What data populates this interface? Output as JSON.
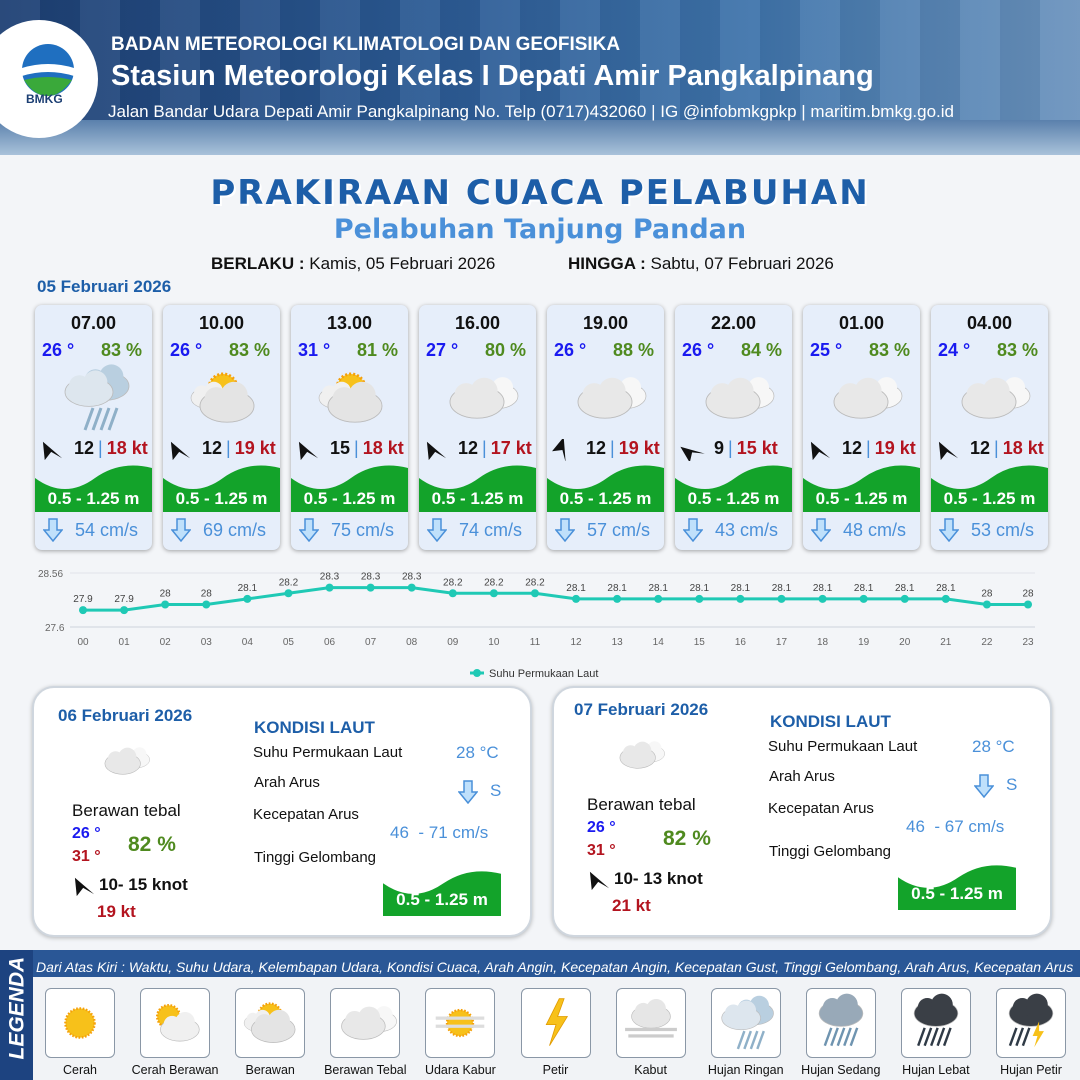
{
  "header": {
    "agency": "BADAN METEOROLOGI KLIMATOLOGI DAN GEOFISIKA",
    "station": "Stasiun Meteorologi Kelas I Depati Amir Pangkalpinang",
    "address": "Jalan Bandar Udara Depati Amir Pangkalpinang No. Telp (0717)432060 | IG @infobmkgpkp | maritim.bmkg.go.id",
    "logo_text": "BMKG"
  },
  "title": "PRAKIRAAN CUACA PELABUHAN",
  "subtitle": "Pelabuhan Tanjung Pandan",
  "validity": {
    "from_label": "BERLAKU :",
    "from": "Kamis, 05 Februari 2026",
    "to_label": "HINGGA :",
    "to": "Sabtu, 07 Februari 2026"
  },
  "day1": {
    "date": "05 Februari 2026",
    "forecasts": [
      {
        "time": "07.00",
        "temp": "26 °",
        "hum": "83 %",
        "icon": "hujan-ringan",
        "wind_dir_deg": 225,
        "wind": "12",
        "gust": "18 kt",
        "wave": "0.5 - 1.25 m",
        "current": "54 cm/s"
      },
      {
        "time": "10.00",
        "temp": "26 °",
        "hum": "83 %",
        "icon": "berawan",
        "wind_dir_deg": 225,
        "wind": "12",
        "gust": "19 kt",
        "wave": "0.5 - 1.25 m",
        "current": "69 cm/s"
      },
      {
        "time": "13.00",
        "temp": "31 °",
        "hum": "81 %",
        "icon": "berawan",
        "wind_dir_deg": 225,
        "wind": "15",
        "gust": "18 kt",
        "wave": "0.5 - 1.25 m",
        "current": "75 cm/s"
      },
      {
        "time": "16.00",
        "temp": "27 °",
        "hum": "80 %",
        "icon": "berawan-tebal",
        "wind_dir_deg": 225,
        "wind": "12",
        "gust": "17 kt",
        "wave": "0.5 - 1.25 m",
        "current": "74 cm/s"
      },
      {
        "time": "19.00",
        "temp": "26 °",
        "hum": "88 %",
        "icon": "berawan-tebal",
        "wind_dir_deg": 270,
        "wind": "12",
        "gust": "19 kt",
        "wave": "0.5 - 1.25 m",
        "current": "57 cm/s"
      },
      {
        "time": "22.00",
        "temp": "26 °",
        "hum": "84 %",
        "icon": "berawan-tebal",
        "wind_dir_deg": 200,
        "wind": "9",
        "gust": "15 kt",
        "wave": "0.5 - 1.25 m",
        "current": "43 cm/s"
      },
      {
        "time": "01.00",
        "temp": "25 °",
        "hum": "83 %",
        "icon": "berawan-tebal",
        "wind_dir_deg": 225,
        "wind": "12",
        "gust": "19 kt",
        "wave": "0.5 - 1.25 m",
        "current": "48 cm/s"
      },
      {
        "time": "04.00",
        "temp": "24 °",
        "hum": "83 %",
        "icon": "berawan-tebal",
        "wind_dir_deg": 225,
        "wind": "12",
        "gust": "18 kt",
        "wave": "0.5 - 1.25 m",
        "current": "53 cm/s"
      }
    ]
  },
  "chart_data": {
    "type": "line",
    "x": [
      "00",
      "01",
      "02",
      "03",
      "04",
      "05",
      "06",
      "07",
      "08",
      "09",
      "10",
      "11",
      "12",
      "13",
      "14",
      "15",
      "16",
      "17",
      "18",
      "19",
      "20",
      "21",
      "22",
      "23"
    ],
    "series": [
      {
        "name": "Suhu Permukaan Laut",
        "values": [
          27.9,
          27.9,
          28.0,
          28.0,
          28.1,
          28.2,
          28.3,
          28.3,
          28.3,
          28.2,
          28.2,
          28.2,
          28.1,
          28.1,
          28.1,
          28.1,
          28.1,
          28.1,
          28.1,
          28.1,
          28.1,
          28.1,
          28.0,
          28.0
        ]
      }
    ],
    "ylim": [
      27.6,
      28.56
    ],
    "yticks": [
      "28.56",
      "27.6"
    ],
    "color": "#1fc9b5",
    "legend": "bottom",
    "grid": true
  },
  "panels": [
    {
      "date": "06 Februari 2026",
      "weather": "Berawan tebal",
      "tmin": "26 °",
      "tmax": "31 °",
      "hum": "82 %",
      "wind": "10- 15 knot",
      "gust": "19 kt",
      "kondisi": "KONDISI LAUT",
      "sst_label": "Suhu Permukaan Laut",
      "sst": "28 °C",
      "dir_label": "Arah Arus",
      "dir": "S",
      "speed_label": "Kecepatan Arus",
      "speed": "46  - 71 cm/s",
      "wave_label": "Tinggi Gelombang",
      "wave": "0.5 - 1.25 m"
    },
    {
      "date": "07 Februari 2026",
      "weather": "Berawan tebal",
      "tmin": "26 °",
      "tmax": "31 °",
      "hum": "82 %",
      "wind": "10- 13 knot",
      "gust": "21 kt",
      "kondisi": "KONDISI LAUT",
      "sst_label": "Suhu Permukaan Laut",
      "sst": "28 °C",
      "dir_label": "Arah Arus",
      "dir": "S",
      "speed_label": "Kecepatan Arus",
      "speed": "46  - 67 cm/s",
      "wave_label": "Tinggi Gelombang",
      "wave": "0.5 - 1.25 m"
    }
  ],
  "legend": {
    "title": "LEGENDA",
    "description": "Dari Atas Kiri : Waktu, Suhu Udara, Kelembapan Udara, Kondisi Cuaca, Arah Angin, Kecepatan Angin, Kecepatan Gust, Tinggi Gelombang, Arah Arus, Kecepatan Arus",
    "items": [
      {
        "label": "Cerah",
        "icon": "cerah"
      },
      {
        "label": "Cerah Berawan",
        "icon": "cerah-berawan"
      },
      {
        "label": "Berawan",
        "icon": "berawan"
      },
      {
        "label": "Berawan Tebal",
        "icon": "berawan-tebal"
      },
      {
        "label": "Udara Kabur",
        "icon": "udara-kabur"
      },
      {
        "label": "Petir",
        "icon": "petir"
      },
      {
        "label": "Kabut",
        "icon": "kabut"
      },
      {
        "label": "Hujan Ringan",
        "icon": "hujan-ringan"
      },
      {
        "label": "Hujan Sedang",
        "icon": "hujan-sedang"
      },
      {
        "label": "Hujan Lebat",
        "icon": "hujan-lebat"
      },
      {
        "label": "Hujan Petir",
        "icon": "hujan-petir"
      }
    ]
  },
  "colors": {
    "brand": "#1d5ea8",
    "wave": "#13a32a",
    "temp": "#1a1af0",
    "humidity": "#4f8a1f",
    "gust": "#b3141f",
    "current": "#4a90d9"
  }
}
